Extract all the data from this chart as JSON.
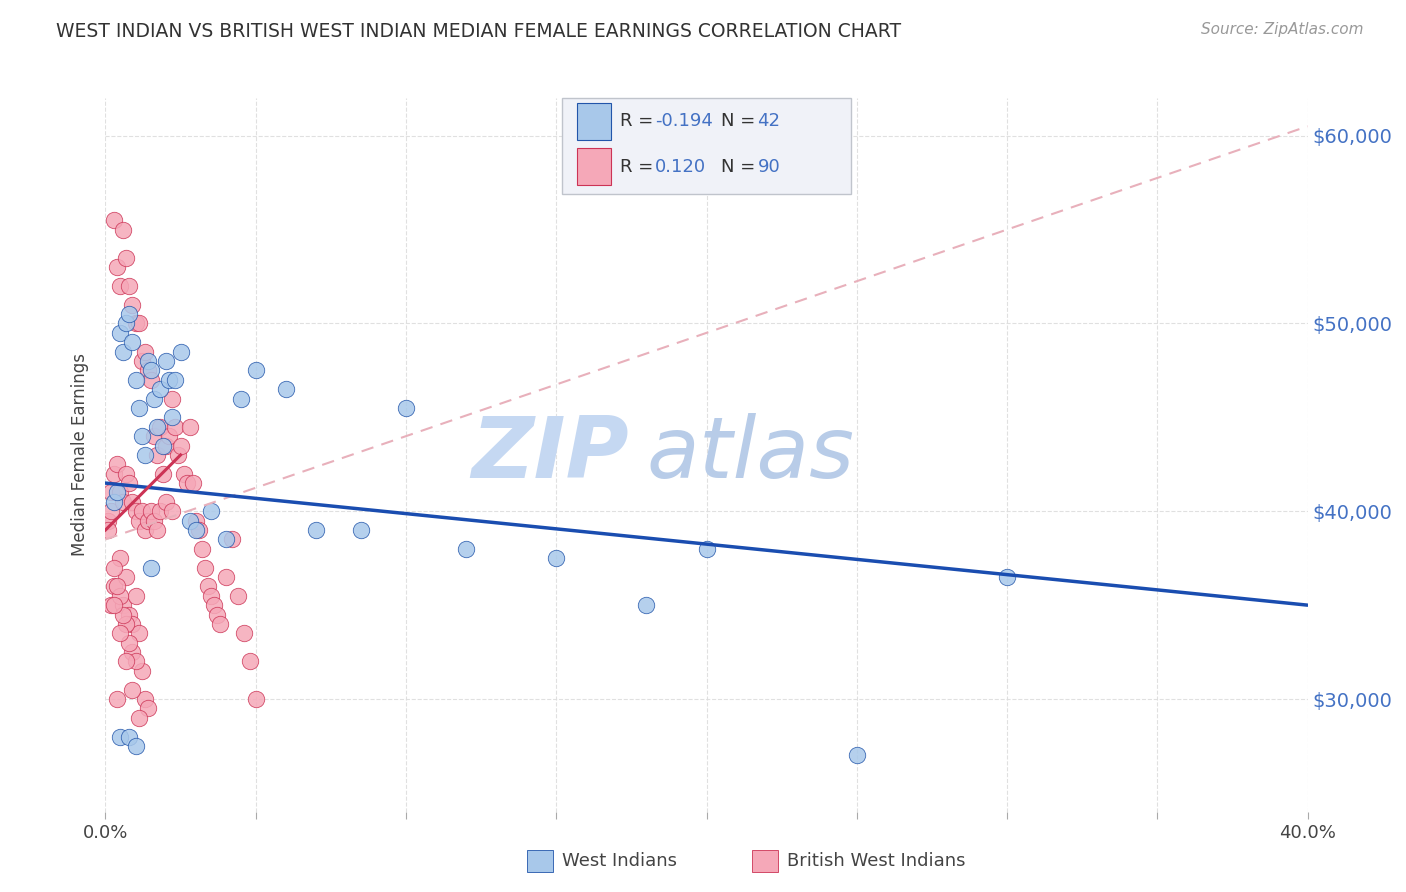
{
  "title": "WEST INDIAN VS BRITISH WEST INDIAN MEDIAN FEMALE EARNINGS CORRELATION CHART",
  "source": "Source: ZipAtlas.com",
  "ylabel": "Median Female Earnings",
  "xlim": [
    0.0,
    0.4
  ],
  "ylim": [
    24000,
    62000
  ],
  "ytick_positions": [
    30000,
    40000,
    50000,
    60000
  ],
  "ytick_labels": [
    "$30,000",
    "$40,000",
    "$50,000",
    "$60,000"
  ],
  "xtick_positions": [
    0.0,
    0.05,
    0.1,
    0.15,
    0.2,
    0.25,
    0.3,
    0.35,
    0.4
  ],
  "xtick_labels": [
    "0.0%",
    "",
    "",
    "",
    "",
    "",
    "",
    "",
    "40.0%"
  ],
  "legend1_R": "-0.194",
  "legend1_N": "42",
  "legend2_R": "0.120",
  "legend2_N": "90",
  "wi_fill": "#a8c8ea",
  "wi_edge": "#2255aa",
  "bwi_fill": "#f5a8b8",
  "bwi_edge": "#cc3355",
  "wi_line_color": "#1a4db0",
  "bwi_solid_color": "#cc3355",
  "bwi_dash_color": "#e8b0bb",
  "watermark_zip_color": "#c8d8f0",
  "watermark_atlas_color": "#b0c8e8",
  "legend_label1": "West Indians",
  "legend_label2": "British West Indians",
  "wi_x": [
    0.003,
    0.004,
    0.005,
    0.006,
    0.007,
    0.008,
    0.009,
    0.01,
    0.011,
    0.012,
    0.013,
    0.014,
    0.015,
    0.016,
    0.017,
    0.018,
    0.019,
    0.02,
    0.021,
    0.022,
    0.023,
    0.025,
    0.028,
    0.03,
    0.035,
    0.04,
    0.045,
    0.05,
    0.06,
    0.07,
    0.085,
    0.1,
    0.12,
    0.15,
    0.18,
    0.2,
    0.25,
    0.3,
    0.005,
    0.008,
    0.01,
    0.015
  ],
  "wi_y": [
    40500,
    41000,
    49500,
    48500,
    50000,
    50500,
    49000,
    47000,
    45500,
    44000,
    43000,
    48000,
    47500,
    46000,
    44500,
    46500,
    43500,
    48000,
    47000,
    45000,
    47000,
    48500,
    39500,
    39000,
    40000,
    38500,
    46000,
    47500,
    46500,
    39000,
    39000,
    45500,
    38000,
    37500,
    35000,
    38000,
    27000,
    36500,
    28000,
    28000,
    27500,
    37000
  ],
  "bwi_x": [
    0.001,
    0.002,
    0.002,
    0.003,
    0.003,
    0.004,
    0.004,
    0.005,
    0.005,
    0.006,
    0.006,
    0.007,
    0.007,
    0.008,
    0.008,
    0.009,
    0.009,
    0.01,
    0.01,
    0.011,
    0.011,
    0.012,
    0.012,
    0.013,
    0.013,
    0.014,
    0.014,
    0.015,
    0.015,
    0.016,
    0.016,
    0.017,
    0.017,
    0.018,
    0.018,
    0.019,
    0.02,
    0.02,
    0.021,
    0.022,
    0.022,
    0.023,
    0.024,
    0.025,
    0.026,
    0.027,
    0.028,
    0.029,
    0.03,
    0.031,
    0.032,
    0.033,
    0.034,
    0.035,
    0.036,
    0.037,
    0.038,
    0.04,
    0.042,
    0.044,
    0.046,
    0.048,
    0.05,
    0.001,
    0.002,
    0.003,
    0.004,
    0.005,
    0.006,
    0.007,
    0.008,
    0.009,
    0.01,
    0.011,
    0.012,
    0.013,
    0.014,
    0.003,
    0.005,
    0.007,
    0.009,
    0.004,
    0.006,
    0.008,
    0.01,
    0.003,
    0.005,
    0.007,
    0.009,
    0.011
  ],
  "bwi_y": [
    39500,
    40000,
    41000,
    55500,
    42000,
    53000,
    42500,
    52000,
    41000,
    55000,
    40500,
    53500,
    42000,
    52000,
    41500,
    51000,
    40500,
    50000,
    40000,
    50000,
    39500,
    48000,
    40000,
    48500,
    39000,
    47500,
    39500,
    47000,
    40000,
    44000,
    39500,
    43000,
    39000,
    44500,
    40000,
    42000,
    43500,
    40500,
    44000,
    46000,
    40000,
    44500,
    43000,
    43500,
    42000,
    41500,
    44500,
    41500,
    39500,
    39000,
    38000,
    37000,
    36000,
    35500,
    35000,
    34500,
    34000,
    36500,
    38500,
    35500,
    33500,
    32000,
    30000,
    39000,
    35000,
    36000,
    30000,
    37500,
    35000,
    36500,
    34500,
    34000,
    35500,
    33500,
    31500,
    30000,
    29500,
    37000,
    35500,
    34000,
    32500,
    36000,
    34500,
    33000,
    32000,
    35000,
    33500,
    32000,
    30500,
    29000
  ]
}
